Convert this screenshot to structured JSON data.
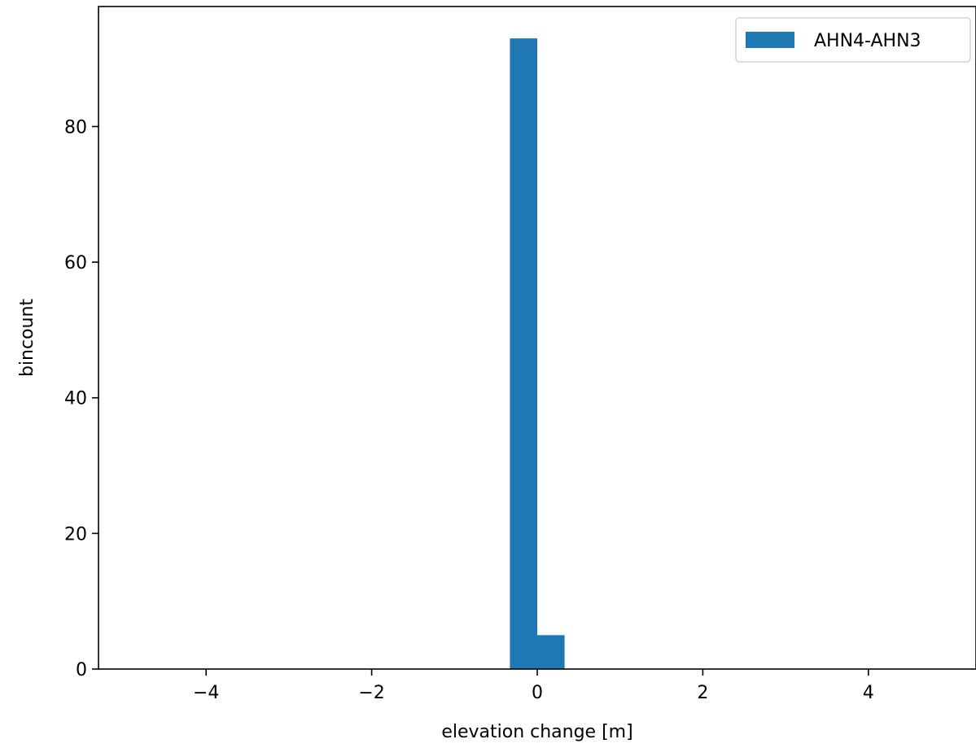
{
  "chart_data": {
    "type": "bar",
    "xlabel": "elevation change [m]",
    "ylabel": "bincount",
    "xlim": [
      -5.3,
      5.3
    ],
    "ylim": [
      0,
      97.7
    ],
    "xticks": [
      -4,
      -2,
      0,
      2,
      4
    ],
    "xtick_labels": [
      "−4",
      "−2",
      "0",
      "2",
      "4"
    ],
    "yticks": [
      0,
      20,
      40,
      60,
      80
    ],
    "ytick_labels": [
      "0",
      "20",
      "40",
      "60",
      "80"
    ],
    "grid": false,
    "legend_position": "top-right",
    "series": [
      {
        "name": "AHN4-AHN3",
        "color": "#1f77b4",
        "bins": [
          {
            "x0": -0.33,
            "x1": 0.0,
            "value": 93
          },
          {
            "x0": 0.0,
            "x1": 0.33,
            "value": 5
          }
        ]
      }
    ]
  }
}
